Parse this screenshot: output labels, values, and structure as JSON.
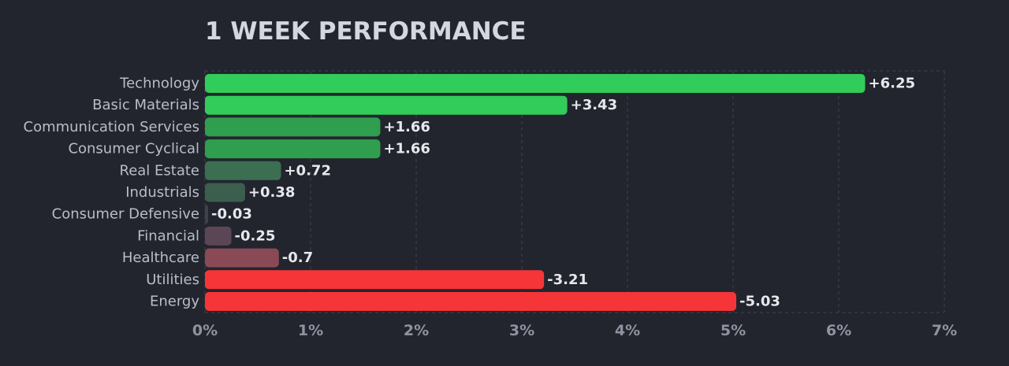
{
  "chart_data": {
    "type": "bar",
    "orientation": "horizontal",
    "title": "1 WEEK PERFORMANCE",
    "categories": [
      "Technology",
      "Basic Materials",
      "Communication Services",
      "Consumer Cyclical",
      "Real Estate",
      "Industrials",
      "Consumer Defensive",
      "Financial",
      "Healthcare",
      "Utilities",
      "Energy"
    ],
    "values": [
      6.25,
      3.43,
      1.66,
      1.66,
      0.72,
      0.38,
      -0.03,
      -0.25,
      -0.7,
      -3.21,
      -5.03
    ],
    "value_labels": [
      "+6.25",
      "+3.43",
      "+1.66",
      "+1.66",
      "+0.72",
      "+0.38",
      "-0.03",
      "-0.25",
      "-0.7",
      "-3.21",
      "-5.03"
    ],
    "bar_colors": [
      "#31cc5a",
      "#31cc5a",
      "#2f9e4f",
      "#2f9e4f",
      "#3c6e52",
      "#3c5e4f",
      "#42404c",
      "#5b4656",
      "#8a4a55",
      "#f63538",
      "#f63538"
    ],
    "x_ticks": [
      "0%",
      "1%",
      "2%",
      "3%",
      "4%",
      "5%",
      "6%",
      "7%"
    ],
    "xlim": [
      0,
      7
    ],
    "bar_length": "absolute value",
    "grid": true,
    "legend": "none",
    "colors": {
      "background": "#22252d",
      "positive": "#31cc5a",
      "negative": "#f63538",
      "grid": "#3f434e"
    }
  }
}
